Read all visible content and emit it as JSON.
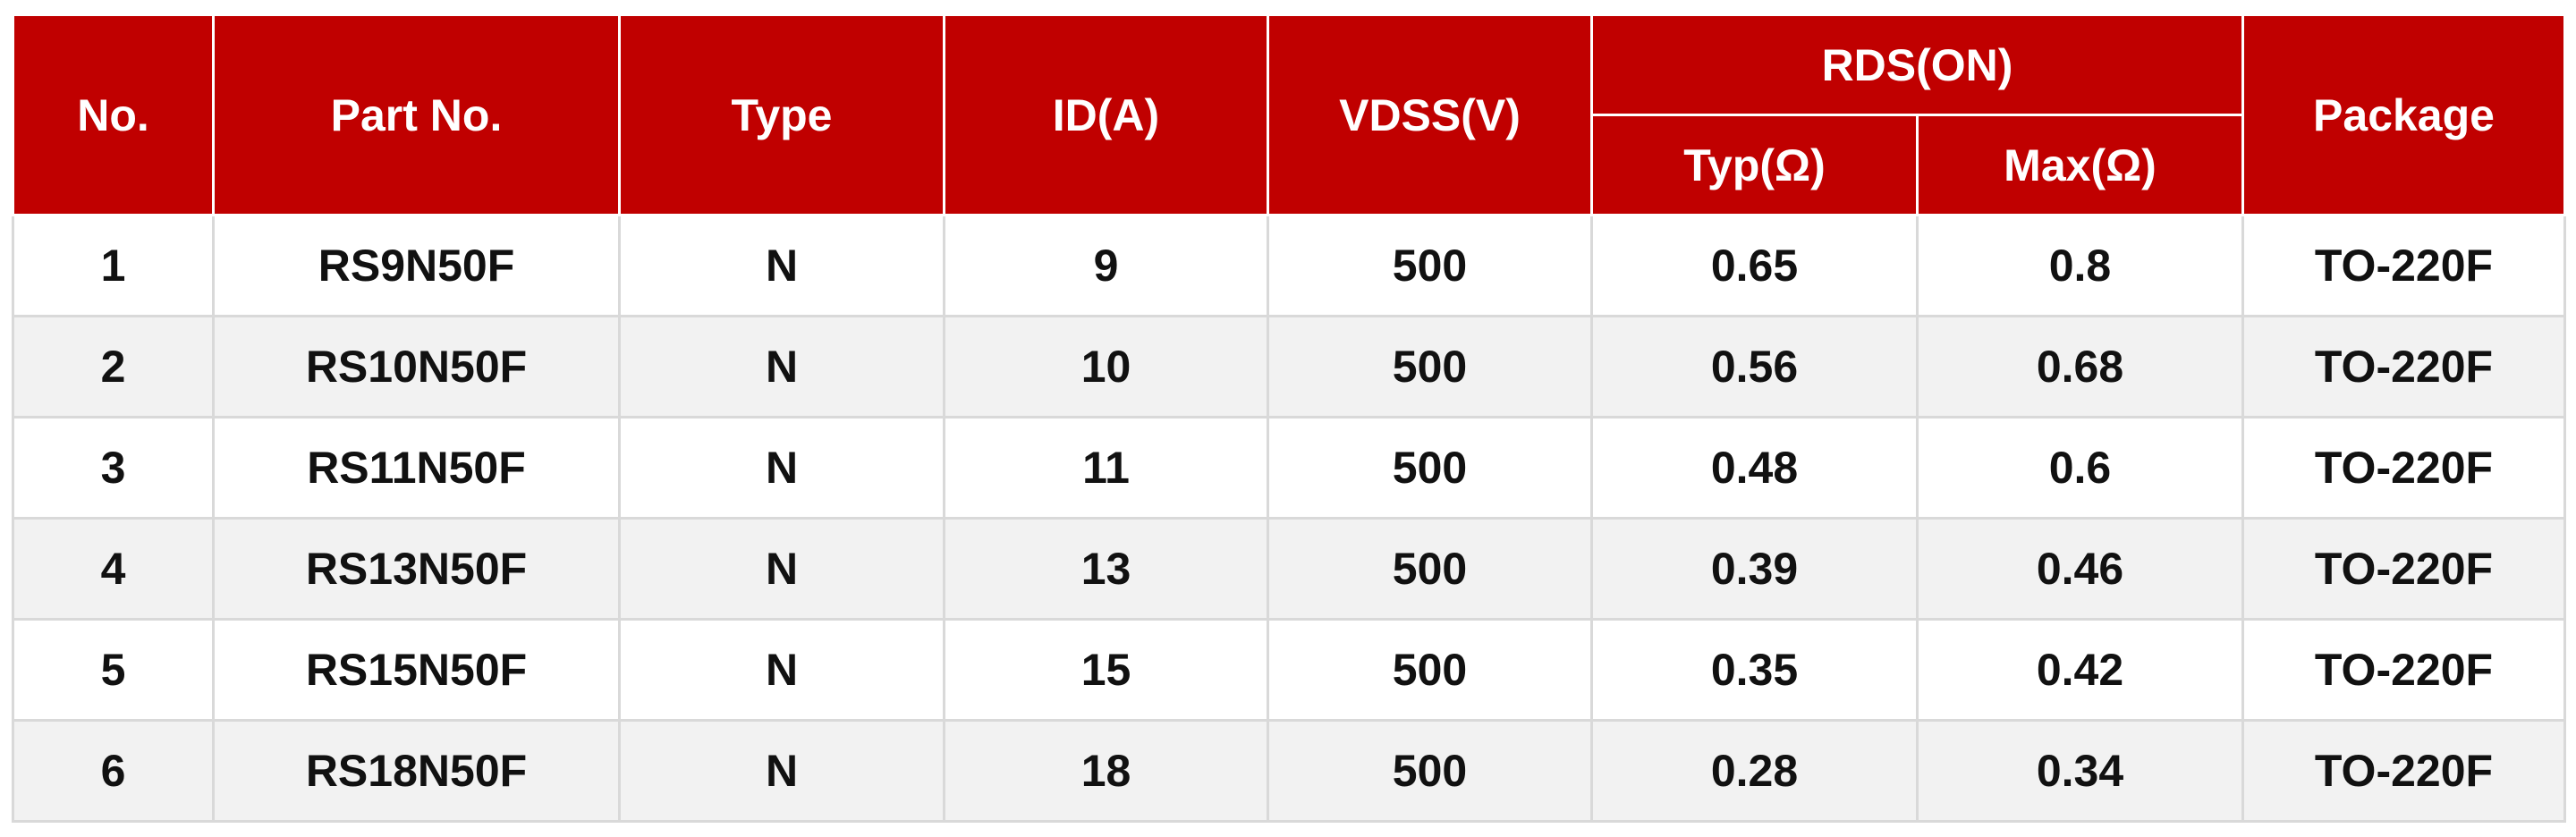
{
  "table": {
    "header": [
      "No.",
      "Part No.",
      "Type",
      "ID(A)",
      "VDSS(V)",
      "RDS(ON)",
      "Package"
    ],
    "subheader": [
      "Typ(Ω)",
      "Max(Ω)"
    ],
    "rows": [
      [
        "1",
        "RS9N50F",
        "N",
        "9",
        "500",
        "0.65",
        "0.8",
        "TO-220F"
      ],
      [
        "2",
        "RS10N50F",
        "N",
        "10",
        "500",
        "0.56",
        "0.68",
        "TO-220F"
      ],
      [
        "3",
        "RS11N50F",
        "N",
        "11",
        "500",
        "0.48",
        "0.6",
        "TO-220F"
      ],
      [
        "4",
        "RS13N50F",
        "N",
        "13",
        "500",
        "0.39",
        "0.46",
        "TO-220F"
      ],
      [
        "5",
        "RS15N50F",
        "N",
        "15",
        "500",
        "0.35",
        "0.42",
        "TO-220F"
      ],
      [
        "6",
        "RS18N50F",
        "N",
        "18",
        "500",
        "0.28",
        "0.34",
        "TO-220F"
      ]
    ]
  }
}
